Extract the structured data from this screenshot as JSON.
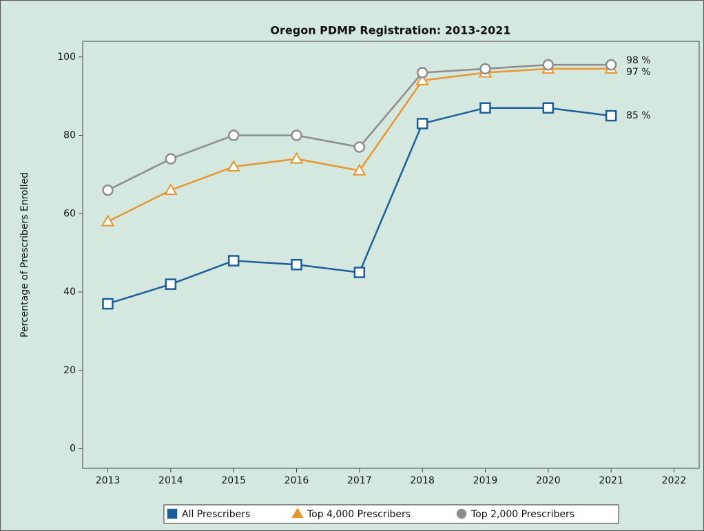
{
  "chart_data": {
    "type": "line",
    "title": "Oregon PDMP Registration: 2013-2021",
    "y_label": "Percentage of Prescribers Enrolled",
    "x": [
      2013,
      2014,
      2015,
      2016,
      2017,
      2018,
      2019,
      2020,
      2021
    ],
    "series": [
      {
        "name": "All Prescribers",
        "color": "#1a5e9a",
        "marker": "square",
        "values": [
          37,
          42,
          48,
          47,
          45,
          83,
          87,
          87,
          85
        ],
        "value_labels": [
          null,
          null,
          null,
          null,
          null,
          null,
          null,
          null,
          "85 %"
        ]
      },
      {
        "name": "Top 4,000 Prescribers",
        "color": "#e8962e",
        "marker": "triangle",
        "values": [
          58,
          66,
          72,
          74,
          71,
          94,
          96,
          97,
          97
        ],
        "value_labels": [
          null,
          null,
          null,
          null,
          null,
          null,
          null,
          null,
          "97 %"
        ]
      },
      {
        "name": "Top 2,000 Prescribers",
        "color": "#8c8c8c",
        "marker": "circle",
        "values": [
          66,
          74,
          80,
          80,
          77,
          96,
          97,
          98,
          98
        ],
        "value_labels": [
          null,
          null,
          null,
          null,
          null,
          null,
          null,
          null,
          "98 %"
        ]
      }
    ],
    "xlim": [
      2012.6,
      2022.4
    ],
    "xticks": [
      2013,
      2014,
      2015,
      2016,
      2017,
      2018,
      2019,
      2020,
      2021,
      2022
    ],
    "ylim": [
      -5,
      104
    ],
    "yticks": [
      0,
      20,
      40,
      60,
      80,
      100
    ],
    "grid": false,
    "legend": "bottom"
  }
}
